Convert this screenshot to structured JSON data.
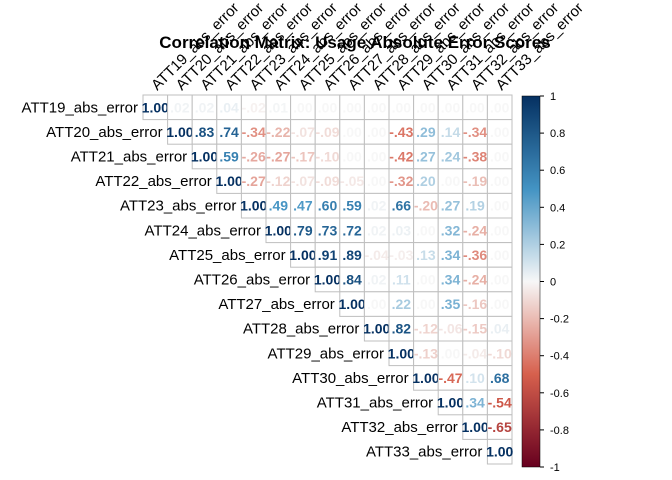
{
  "chart_data": {
    "type": "heatmap",
    "title": "Correlation Matrix: Usage Absolute Error Scores",
    "layout": "upper-triangle",
    "variables": [
      "ATT19_abs_error",
      "ATT20_abs_error",
      "ATT21_abs_error",
      "ATT22_abs_error",
      "ATT23_abs_error",
      "ATT24_abs_error",
      "ATT25_abs_error",
      "ATT26_abs_error",
      "ATT27_abs_error",
      "ATT28_abs_error",
      "ATT29_abs_error",
      "ATT30_abs_error",
      "ATT31_abs_error",
      "ATT32_abs_error",
      "ATT33_abs_error"
    ],
    "matrix": [
      [
        1.0,
        0.02,
        0.02,
        0.04,
        -0.02,
        0.01,
        0.0,
        0.0,
        0.0,
        0.0,
        0.0,
        0.0,
        0.0,
        0.0,
        0.0
      ],
      [
        null,
        1.0,
        0.83,
        0.74,
        -0.34,
        -0.22,
        -0.07,
        -0.09,
        0.0,
        0.0,
        -0.43,
        0.29,
        0.14,
        -0.34,
        0.0
      ],
      [
        null,
        null,
        1.0,
        0.59,
        -0.26,
        -0.27,
        -0.17,
        -0.1,
        0.0,
        0.0,
        -0.42,
        0.27,
        0.24,
        -0.38,
        0.0
      ],
      [
        null,
        null,
        null,
        1.0,
        -0.27,
        -0.12,
        -0.07,
        -0.09,
        -0.05,
        0.0,
        -0.32,
        0.2,
        0.0,
        -0.19,
        0.0
      ],
      [
        null,
        null,
        null,
        null,
        1.0,
        0.49,
        0.47,
        0.6,
        0.59,
        0.02,
        0.66,
        -0.2,
        0.27,
        0.19,
        0.0
      ],
      [
        null,
        null,
        null,
        null,
        null,
        1.0,
        0.79,
        0.73,
        0.72,
        0.02,
        0.03,
        0.0,
        0.32,
        -0.24,
        0.0
      ],
      [
        null,
        null,
        null,
        null,
        null,
        null,
        1.0,
        0.91,
        0.89,
        -0.04,
        -0.03,
        0.13,
        0.34,
        -0.36,
        0.0
      ],
      [
        null,
        null,
        null,
        null,
        null,
        null,
        null,
        1.0,
        0.84,
        0.02,
        0.11,
        0.0,
        0.34,
        -0.24,
        0.0
      ],
      [
        null,
        null,
        null,
        null,
        null,
        null,
        null,
        null,
        1.0,
        0.0,
        0.22,
        0.0,
        0.35,
        -0.16,
        0.0
      ],
      [
        null,
        null,
        null,
        null,
        null,
        null,
        null,
        null,
        null,
        1.0,
        0.82,
        -0.12,
        -0.06,
        -0.15,
        0.04
      ],
      [
        null,
        null,
        null,
        null,
        null,
        null,
        null,
        null,
        null,
        null,
        1.0,
        -0.13,
        0.0,
        -0.04,
        -0.1
      ],
      [
        null,
        null,
        null,
        null,
        null,
        null,
        null,
        null,
        null,
        null,
        null,
        1.0,
        -0.47,
        0.1,
        0.68
      ],
      [
        null,
        null,
        null,
        null,
        null,
        null,
        null,
        null,
        null,
        null,
        null,
        null,
        1.0,
        0.34,
        -0.54
      ],
      [
        null,
        null,
        null,
        null,
        null,
        null,
        null,
        null,
        null,
        null,
        null,
        null,
        null,
        1.0,
        -0.65
      ],
      [
        null,
        null,
        null,
        null,
        null,
        null,
        null,
        null,
        null,
        null,
        null,
        null,
        null,
        null,
        1.0
      ]
    ],
    "colorbar": {
      "range": [
        -1,
        1
      ],
      "ticks": [
        "1",
        "0.8",
        "0.6",
        "0.4",
        "0.2",
        "0",
        "-0.2",
        "-0.4",
        "-0.6",
        "-0.8",
        "-1"
      ]
    },
    "colors": {
      "negative_extreme": "#67001f",
      "negative_mid": "#d6604d",
      "neutral": "#f7f7f7",
      "positive_mid": "#4393c3",
      "positive_extreme": "#053061",
      "grid": "#bfbfbf"
    }
  }
}
